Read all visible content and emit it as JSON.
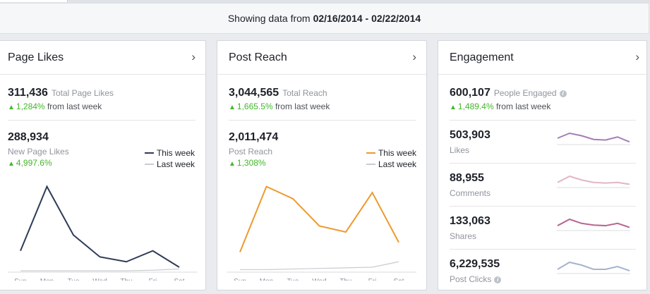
{
  "banner": {
    "prefix": "Showing data from",
    "range": "02/16/2014 - 02/22/2014"
  },
  "colors": {
    "page_likes_line": "#2e3b58",
    "post_reach_line": "#ee9a2c",
    "last_week_line": "#c8cbd0",
    "up_arrow": "#42b72a"
  },
  "icons": {
    "chevron": "chevron-right-icon",
    "info": "info-icon",
    "up": "up-triangle-icon"
  },
  "page_likes": {
    "title": "Page Likes",
    "total_value": "311,436",
    "total_label": "Total Page Likes",
    "total_delta": "1,284%",
    "total_delta_suffix": "from last week",
    "new_value": "288,934",
    "new_label": "New Page Likes",
    "new_delta": "4,997.6%",
    "legend_this": "This week",
    "legend_last": "Last week"
  },
  "post_reach": {
    "title": "Post Reach",
    "total_value": "3,044,565",
    "total_label": "Total Reach",
    "total_delta": "1,665.5%",
    "total_delta_suffix": "from last week",
    "new_value": "2,011,474",
    "new_label": "Post Reach",
    "new_delta": "1,308%",
    "legend_this": "This week",
    "legend_last": "Last week"
  },
  "engagement": {
    "title": "Engagement",
    "total_value": "600,107",
    "total_label": "People Engaged",
    "total_delta": "1,489.4%",
    "total_delta_suffix": "from last week",
    "rows": [
      {
        "value": "503,903",
        "label": "Likes",
        "color": "#a57db5",
        "trend": [
          4,
          8,
          6,
          3,
          2.5,
          5,
          1
        ]
      },
      {
        "value": "88,955",
        "label": "Comments",
        "color": "#e2b5c8",
        "trend": [
          3,
          8,
          5,
          3,
          2.5,
          3,
          1.5
        ]
      },
      {
        "value": "133,063",
        "label": "Shares",
        "color": "#b8668f",
        "trend": [
          3,
          8.5,
          5,
          3.5,
          3,
          5,
          1.5
        ]
      },
      {
        "value": "6,229,535",
        "label": "Post Clicks",
        "color": "#a5b3cf",
        "trend": [
          2,
          7,
          5,
          2,
          2,
          4,
          1
        ]
      }
    ]
  },
  "chart_data": [
    {
      "type": "line",
      "categories": [
        "Sun",
        "Mon",
        "Tue",
        "Wed",
        "Thu",
        "Fri",
        "Sat"
      ],
      "series": [
        {
          "name": "This week",
          "values": [
            34,
            140,
            60,
            24,
            16,
            34,
            7
          ]
        },
        {
          "name": "Last week",
          "values": [
            1,
            1,
            1,
            1,
            1,
            2,
            4
          ]
        }
      ],
      "ylim": [
        0,
        150
      ],
      "grid": false,
      "legend": "top-right"
    },
    {
      "type": "line",
      "categories": [
        "Sun",
        "Mon",
        "Tue",
        "Wed",
        "Thu",
        "Fri",
        "Sat"
      ],
      "series": [
        {
          "name": "This week",
          "values": [
            32,
            140,
            120,
            75,
            65,
            130,
            48
          ]
        },
        {
          "name": "Last week",
          "values": [
            3,
            3,
            4,
            5,
            6,
            7,
            16
          ]
        }
      ],
      "ylim": [
        0,
        150
      ],
      "grid": false,
      "legend": "top-right"
    }
  ]
}
